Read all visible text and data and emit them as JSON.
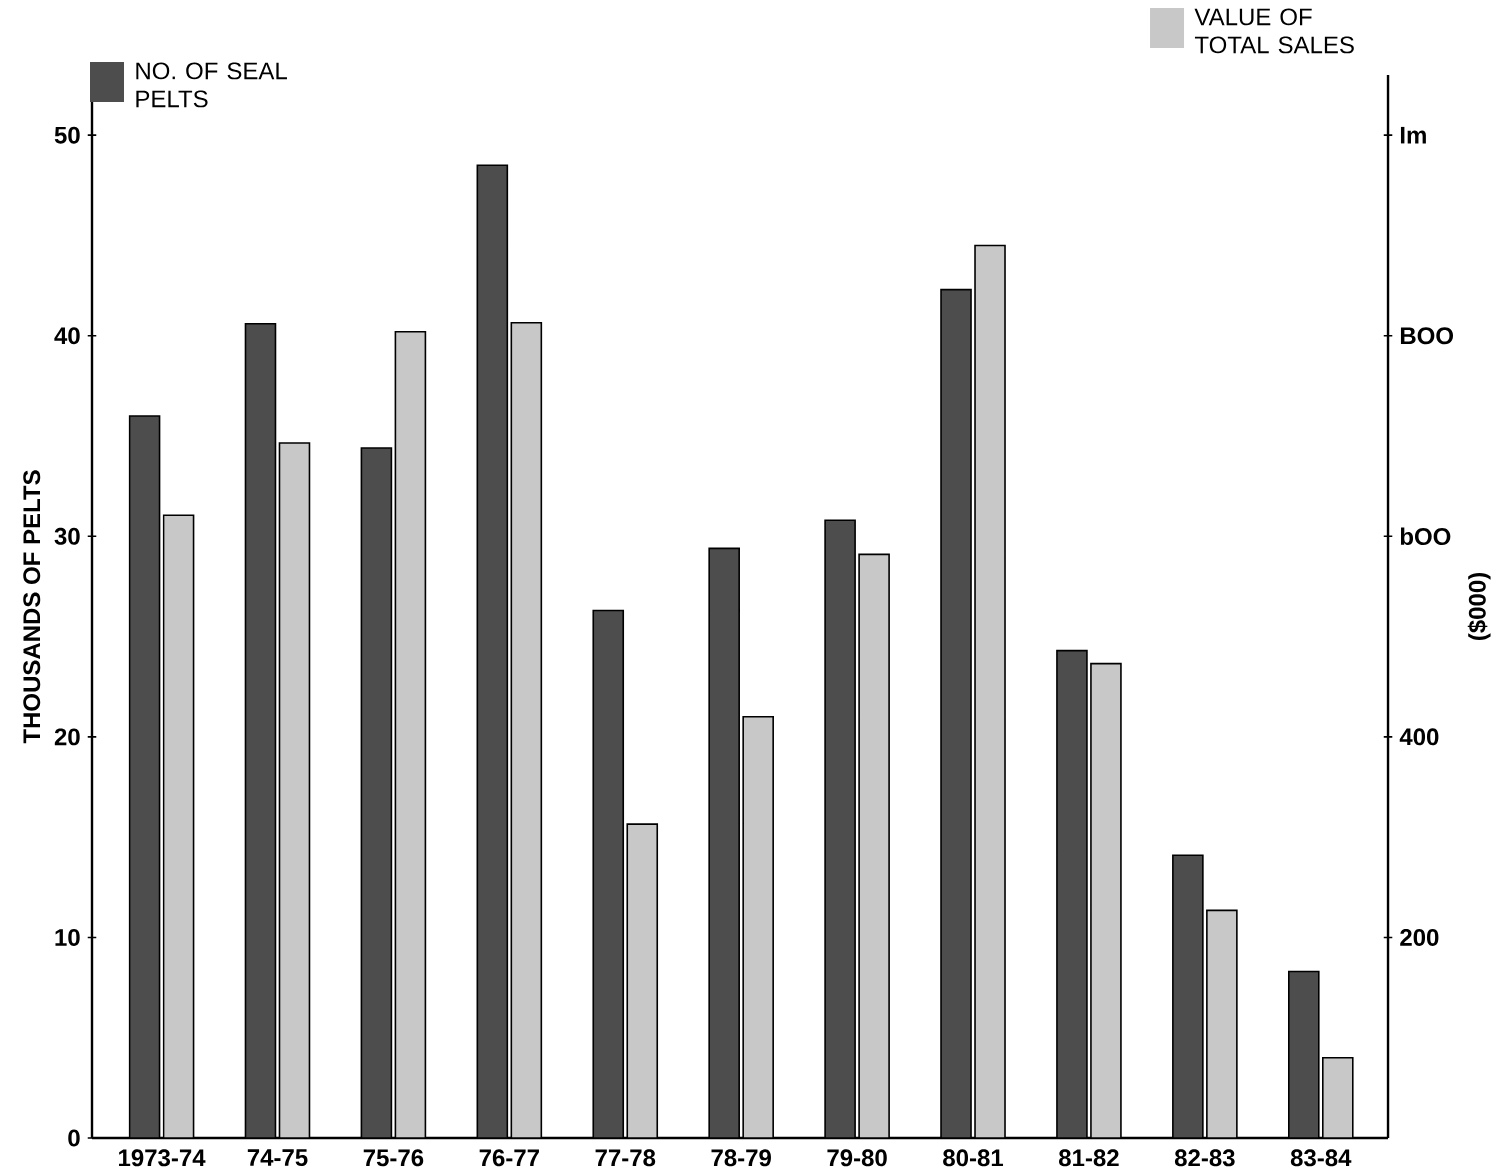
{
  "chart_data": {
    "type": "bar",
    "ylabel": "THOUSANDS OF PELTS",
    "y2label": "($000)",
    "categories": [
      "1973-74",
      "74-75",
      "75-76",
      "76-77",
      "77-78",
      "78-79",
      "79-80",
      "80-81",
      "81-82",
      "82-83",
      "83-84"
    ],
    "series": [
      {
        "name": "NO. OF SEAL PELTS",
        "color": "#4d4d4d",
        "values": [
          36.0,
          40.6,
          34.4,
          48.5,
          26.3,
          29.4,
          30.8,
          42.3,
          24.3,
          14.1,
          8.3
        ]
      },
      {
        "name": "VALUE OF TOTAL SALES",
        "color": "#c8c8c8",
        "axis": "y2",
        "values": [
          621,
          693,
          804,
          813,
          313,
          420,
          582,
          890,
          473,
          227,
          80
        ]
      }
    ],
    "ylim": [
      0,
      53
    ],
    "yticks": [
      0,
      10,
      20,
      30,
      40,
      50
    ],
    "y2lim": [
      0,
      1060
    ],
    "y2ticks": [
      200,
      400,
      {
        "value": 600,
        "label": "bOO"
      },
      {
        "value": 800,
        "label": "BOO"
      },
      {
        "value": 1000,
        "label": "Im"
      }
    ],
    "legend": "top"
  }
}
